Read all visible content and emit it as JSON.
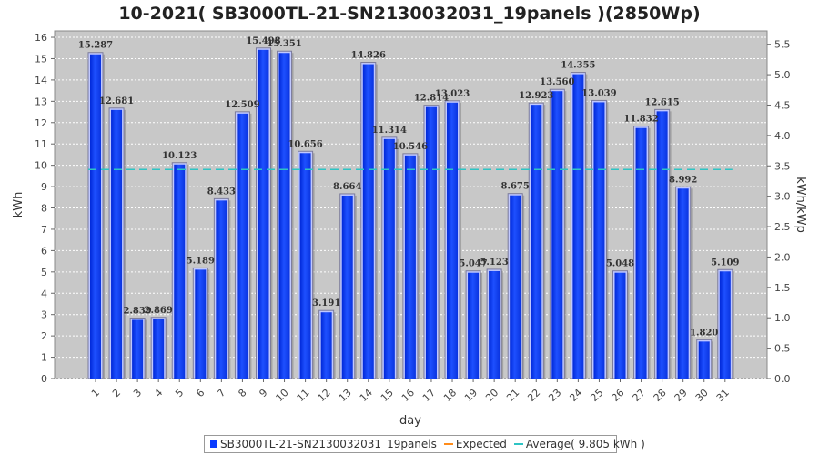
{
  "chart_data": {
    "type": "bar",
    "title": "10-2021( SB3000TL-21-SN2130032031_19panels )(2850Wp)",
    "xlabel": "day",
    "ylabel": "kWh",
    "y2label": "kWh/kWp",
    "categories": [
      "1",
      "2",
      "3",
      "4",
      "5",
      "6",
      "7",
      "8",
      "9",
      "10",
      "11",
      "12",
      "13",
      "14",
      "15",
      "16",
      "17",
      "18",
      "19",
      "20",
      "21",
      "22",
      "23",
      "24",
      "25",
      "26",
      "27",
      "28",
      "29",
      "30",
      "31"
    ],
    "series": [
      {
        "name": "SB3000TL-21-SN2130032031_19panels",
        "values": [
          15.287,
          12.681,
          2.839,
          2.869,
          10.123,
          5.189,
          8.433,
          12.509,
          15.498,
          15.351,
          10.656,
          3.191,
          8.664,
          14.826,
          11.314,
          10.546,
          12.814,
          13.023,
          5.047,
          5.123,
          8.675,
          12.923,
          13.56,
          14.355,
          13.039,
          5.048,
          11.832,
          12.615,
          8.992,
          1.82,
          5.109
        ],
        "labels": [
          "15.287",
          "12.681",
          "2.839",
          "2.869",
          "10.123",
          "5.189",
          "8.433",
          "12.509",
          "15.498",
          "15.351",
          "10.656",
          "3.191",
          "8.664",
          "14.826",
          "11.314",
          "10.546",
          "12.814",
          "13.023",
          "5.047",
          "5.123",
          "8.675",
          "12.923",
          "13.560",
          "14.355",
          "13.039",
          "5.048",
          "11.832",
          "12.615",
          "8.992",
          "1.820",
          "5.109"
        ]
      }
    ],
    "average": 9.805,
    "ylim": [
      0,
      16.3
    ],
    "yticks": [
      0,
      1,
      2,
      3,
      4,
      5,
      6,
      7,
      8,
      9,
      10,
      11,
      12,
      13,
      14,
      15,
      16
    ],
    "y2lim": [
      0,
      5.72
    ],
    "y2ticks": [
      "0.0",
      "0.5",
      "1.0",
      "1.5",
      "2.0",
      "2.5",
      "3.0",
      "3.5",
      "4.0",
      "4.5",
      "5.0",
      "5.5"
    ],
    "grid": true,
    "legend_position": "bottom"
  },
  "legend": {
    "series_label": "SB3000TL-21-SN2130032031_19panels",
    "expected_label": "Expected",
    "average_label": "Average( 9.805 kWh )"
  },
  "colors": {
    "bar_fill": "#0a3cff",
    "bar_highlight": "#4a73ff",
    "plot_bg": "#c8c8c8",
    "grid": "#ffffff",
    "average_line": "#2ec4c4",
    "expected_line": "#ff8c1a"
  }
}
